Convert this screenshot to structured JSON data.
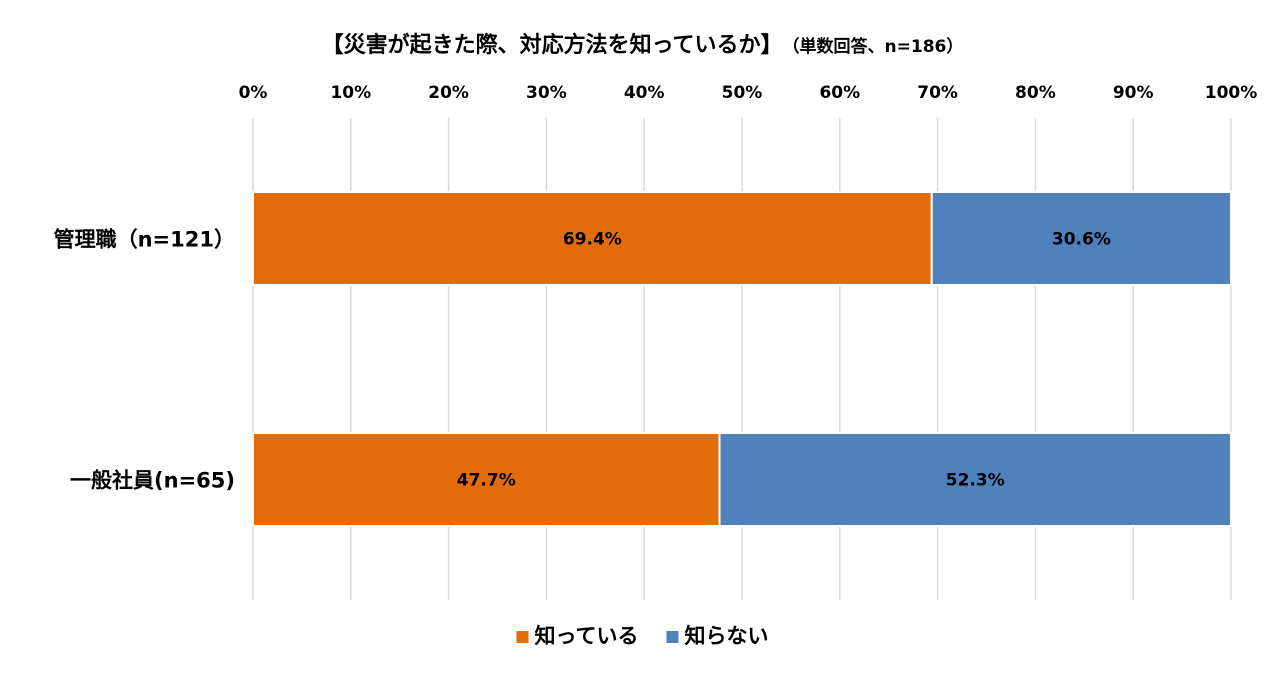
{
  "chart_data": {
    "type": "bar",
    "orientation": "horizontal",
    "stacked": true,
    "title": "【災害が起きた際、対応方法を知っているか】",
    "subtitle": "（単数回答、n=186）",
    "categories": [
      "管理職（n=121）",
      "一般社員(n=65)"
    ],
    "series": [
      {
        "name": "知っている",
        "values": [
          69.4,
          47.7
        ],
        "labels": [
          "69.4%",
          "47.7%"
        ],
        "color": "#E36C09"
      },
      {
        "name": "知らない",
        "values": [
          30.6,
          52.3
        ],
        "labels": [
          "30.6%",
          "52.3%"
        ],
        "color": "#4F81BD"
      }
    ],
    "xlim": [
      0,
      100
    ],
    "xticks": [
      "0%",
      "10%",
      "20%",
      "30%",
      "40%",
      "50%",
      "60%",
      "70%",
      "80%",
      "90%",
      "100%"
    ],
    "grid": true,
    "legend": "bottom"
  }
}
